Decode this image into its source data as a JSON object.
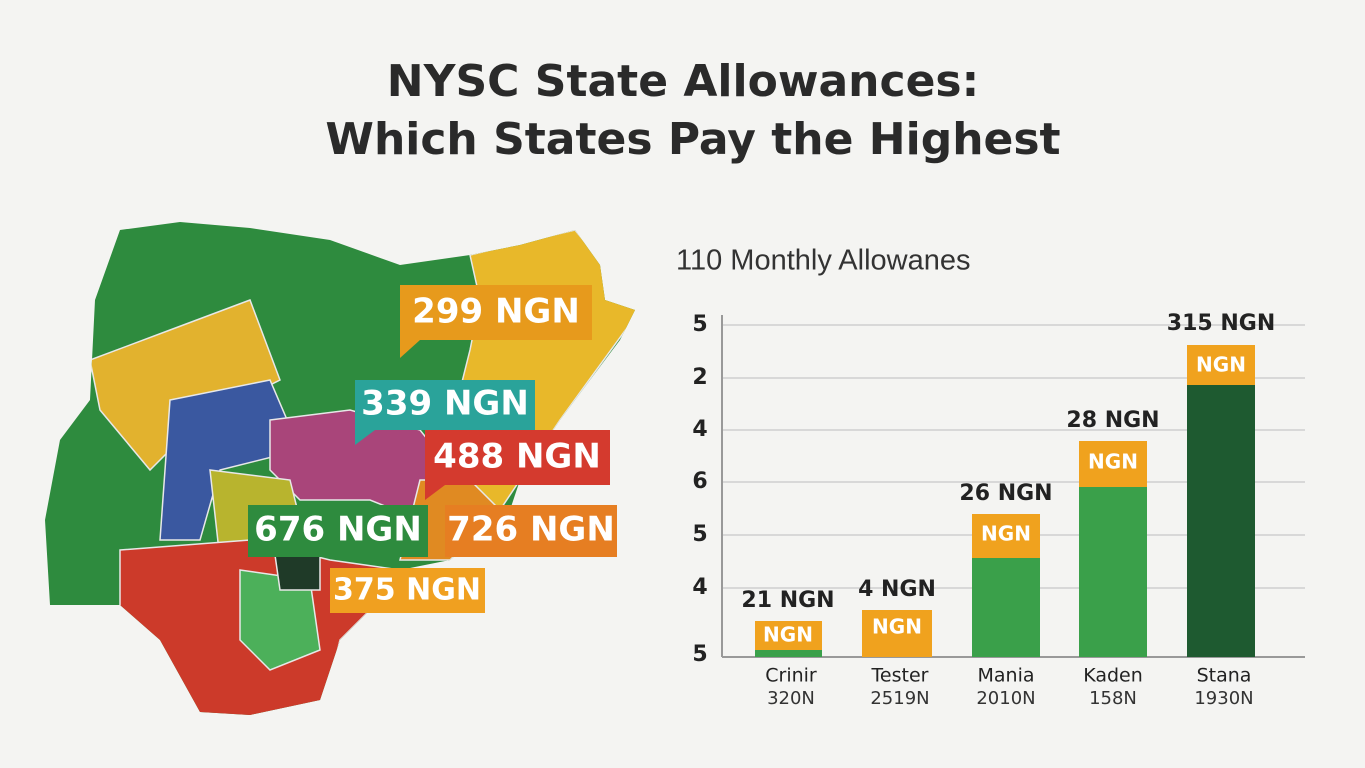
{
  "header": {
    "title_lines": [
      "NYSC State Allowances:",
      "Which States Pay the Highest"
    ]
  },
  "map": {
    "labels": [
      "299 NGN",
      "339 NGN",
      "488 NGN",
      "676 NGN",
      "726 NGN",
      "375 NGN"
    ]
  },
  "bar_panel": {
    "subtitle": "110 Monthly Allowanes",
    "y_axis_labels": [
      "5",
      "2",
      "4",
      "6",
      "5",
      "4",
      "5"
    ],
    "bars": [
      {
        "value_label": "21 NGN",
        "tag": "NGN",
        "name": "Crinir",
        "sub": "320N"
      },
      {
        "value_label": "4 NGN",
        "tag": "NGN",
        "name": "Tester",
        "sub": "2519N"
      },
      {
        "value_label": "26 NGN",
        "tag": "NGN",
        "name": "Mania",
        "sub": "2010N"
      },
      {
        "value_label": "28 NGN",
        "tag": "NGN",
        "name": "Kaden",
        "sub": "158N"
      },
      {
        "value_label": "315 NGN",
        "tag": "NGN",
        "name": "Stana",
        "sub": "1930N"
      }
    ]
  }
}
